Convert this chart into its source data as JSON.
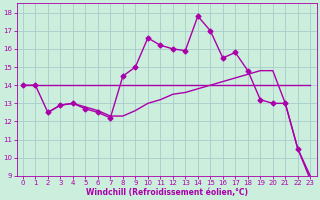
{
  "background_color": "#cceedd",
  "grid_color": "#aacccc",
  "line_color": "#aa00aa",
  "xlabel": "Windchill (Refroidissement éolien,°C)",
  "xlim": [
    -0.5,
    23.5
  ],
  "ylim": [
    9,
    18.5
  ],
  "yticks": [
    9,
    10,
    11,
    12,
    13,
    14,
    15,
    16,
    17,
    18
  ],
  "xticks": [
    0,
    1,
    2,
    3,
    4,
    5,
    6,
    7,
    8,
    9,
    10,
    11,
    12,
    13,
    14,
    15,
    16,
    17,
    18,
    19,
    20,
    21,
    22,
    23
  ],
  "series": [
    {
      "x": [
        0,
        23
      ],
      "y": [
        14.0,
        14.0
      ],
      "marker": null,
      "linewidth": 1.0
    },
    {
      "x": [
        2,
        3,
        4,
        5,
        6,
        7,
        8,
        9,
        10,
        11,
        12,
        13,
        14,
        15,
        16,
        17,
        18,
        19,
        20,
        21,
        22,
        23
      ],
      "y": [
        12.5,
        12.9,
        13.0,
        12.8,
        12.6,
        12.3,
        12.3,
        12.6,
        13.0,
        13.2,
        13.5,
        13.6,
        13.8,
        14.0,
        14.2,
        14.4,
        14.6,
        14.8,
        14.8,
        13.0,
        10.5,
        9.0
      ],
      "marker": null,
      "linewidth": 1.0
    },
    {
      "x": [
        0,
        1,
        2,
        3,
        4,
        5,
        6,
        7,
        8,
        9,
        10,
        11,
        12,
        13,
        14,
        15,
        16,
        17,
        18,
        19,
        20,
        21,
        22,
        23
      ],
      "y": [
        14.0,
        14.0,
        12.5,
        12.9,
        13.0,
        12.7,
        12.5,
        12.2,
        14.5,
        15.0,
        16.6,
        16.2,
        16.0,
        15.9,
        17.8,
        17.0,
        15.5,
        15.8,
        14.8,
        13.2,
        13.0,
        13.0,
        10.5,
        8.8
      ],
      "marker": "D",
      "markersize": 2.5,
      "linewidth": 1.0
    }
  ],
  "figsize": [
    3.2,
    2.0
  ],
  "dpi": 100,
  "xlabel_fontsize": 5.5,
  "tick_fontsize": 5.0
}
